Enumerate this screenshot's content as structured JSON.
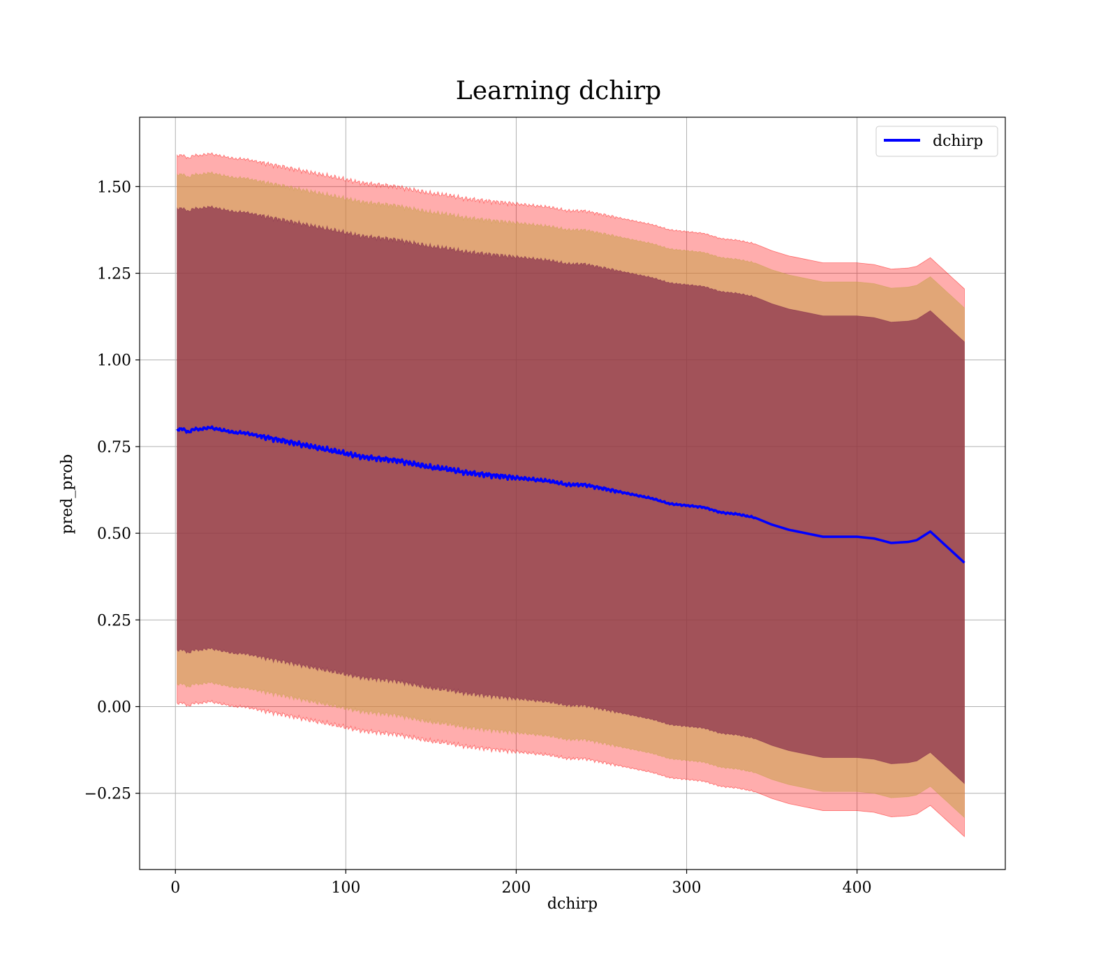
{
  "chart_data": {
    "type": "line",
    "title": "Learning dchirp",
    "xlabel": "dchirp",
    "ylabel": "pred_prob",
    "xlim": [
      -21,
      487
    ],
    "ylim": [
      -0.47,
      1.7
    ],
    "xticks": [
      0,
      100,
      200,
      300,
      400
    ],
    "xtick_labels": [
      "0",
      "100",
      "200",
      "300",
      "400"
    ],
    "yticks": [
      -0.25,
      0.0,
      0.25,
      0.5,
      0.75,
      1.0,
      1.25,
      1.5
    ],
    "ytick_labels": [
      "−0.25",
      "0.00",
      "0.25",
      "0.50",
      "0.75",
      "1.00",
      "1.25",
      "1.50"
    ],
    "grid": true,
    "legend": {
      "position": "top-right",
      "entries": [
        "dchirp"
      ]
    },
    "colors": {
      "line": "#0000ff",
      "band_outer": "#ff0000",
      "band_middle": "#c8a04a",
      "band_inner": "#7a1f47"
    },
    "series": [
      {
        "name": "dchirp",
        "x": [
          1,
          5,
          8,
          10,
          15,
          20,
          25,
          30,
          35,
          40,
          50,
          60,
          70,
          80,
          90,
          100,
          110,
          120,
          130,
          140,
          150,
          160,
          170,
          180,
          190,
          200,
          210,
          220,
          230,
          240,
          250,
          260,
          270,
          280,
          290,
          300,
          310,
          320,
          330,
          340,
          350,
          360,
          370,
          380,
          390,
          400,
          410,
          420,
          430,
          435,
          443,
          463
        ],
        "y": [
          0.8,
          0.8,
          0.79,
          0.8,
          0.8,
          0.805,
          0.8,
          0.795,
          0.79,
          0.79,
          0.78,
          0.77,
          0.76,
          0.75,
          0.74,
          0.73,
          0.72,
          0.715,
          0.71,
          0.7,
          0.69,
          0.685,
          0.675,
          0.67,
          0.665,
          0.66,
          0.655,
          0.65,
          0.64,
          0.64,
          0.63,
          0.62,
          0.61,
          0.6,
          0.585,
          0.58,
          0.575,
          0.56,
          0.555,
          0.545,
          0.525,
          0.51,
          0.5,
          0.49,
          0.49,
          0.49,
          0.485,
          0.472,
          0.475,
          0.48,
          0.505,
          0.415
        ]
      }
    ],
    "bands": [
      {
        "level": "outer",
        "half_width_start": 0.79,
        "half_width_end": 0.79
      },
      {
        "level": "middle",
        "half_width_start": 0.735,
        "half_width_end": 0.735
      },
      {
        "level": "inner",
        "half_width_start": 0.637,
        "half_width_end": 0.637
      }
    ]
  }
}
